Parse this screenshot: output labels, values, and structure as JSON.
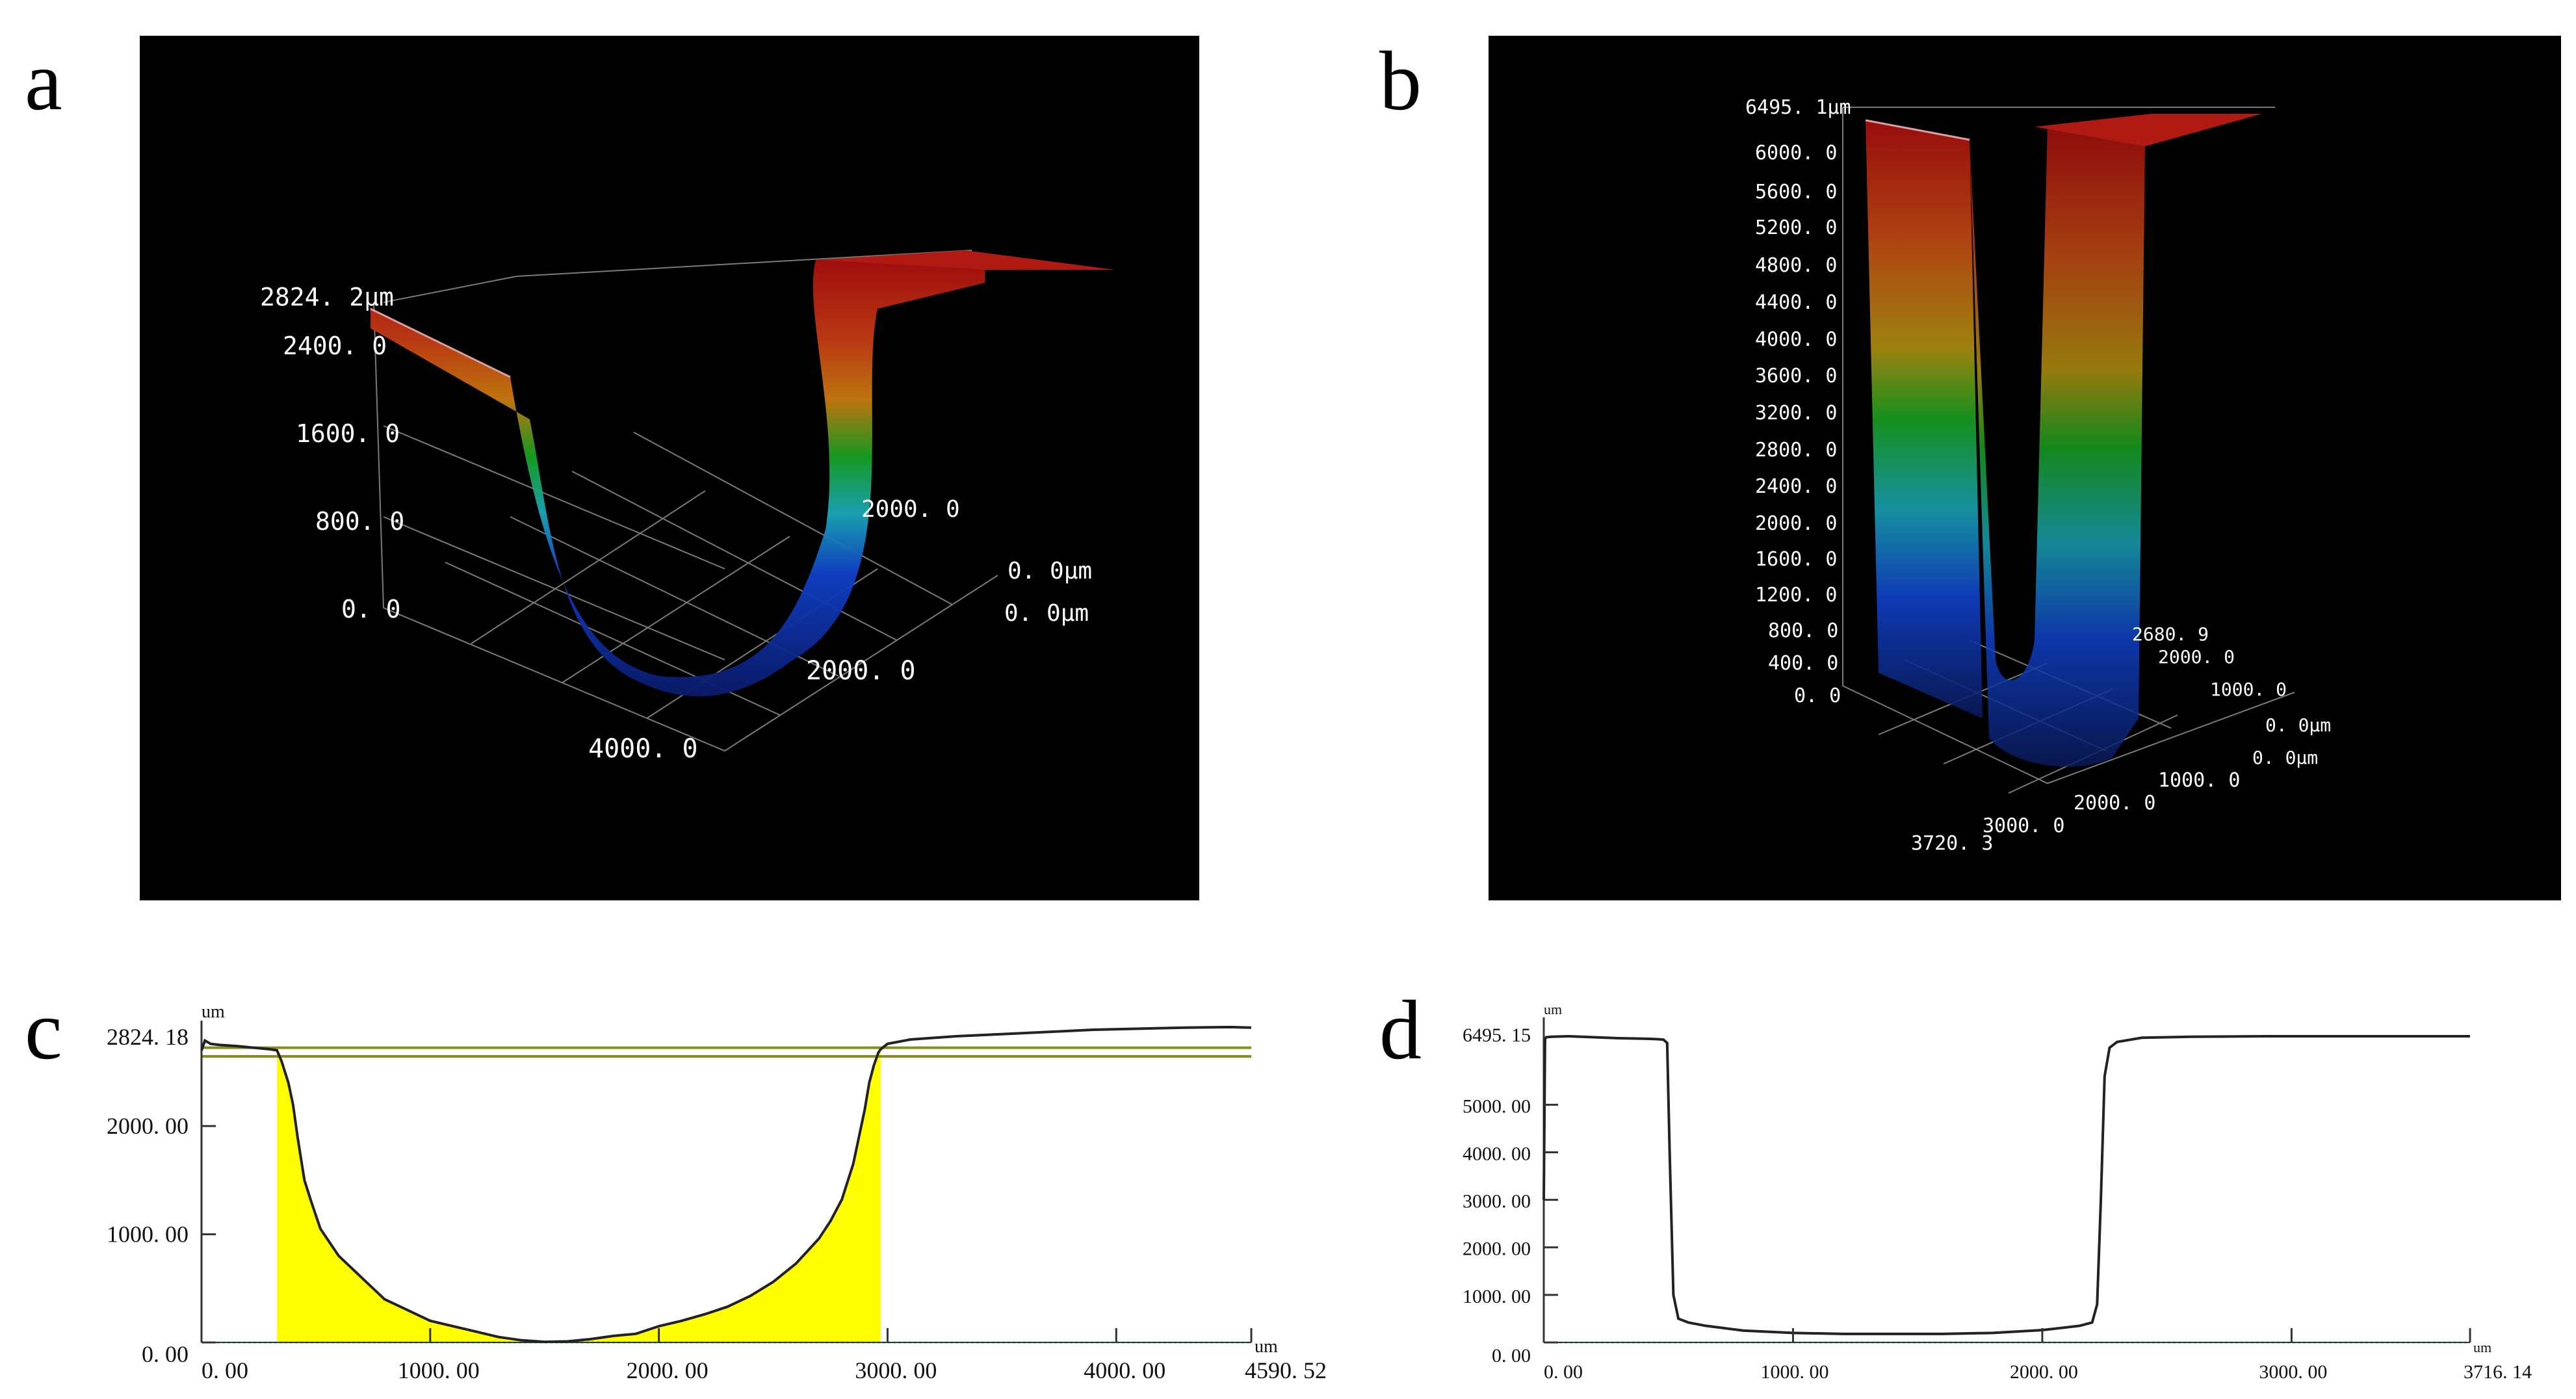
{
  "figure": {
    "panels": {
      "a": "a",
      "b": "b",
      "c": "c",
      "d": "d"
    }
  },
  "colors": {
    "background_3d": "#000000",
    "surface_high": "#b01010",
    "surface_mid": "#10a020",
    "surface_low": "#1030c0",
    "grid_3d": "#8a8a8a",
    "profile_line": "#222222",
    "fill_area": "#ffff00",
    "threshold_line": "#8b8b20",
    "baseline": "#2fd0e8"
  },
  "chart_data": [
    {
      "id": "a",
      "type": "surface3d",
      "title": "",
      "z_unit": "µm",
      "z_max_label": "2824. 2µm",
      "z_ticks": [
        "2400. 0",
        "1600. 0",
        "800. 0",
        "0. 0"
      ],
      "y_axis_ticks": [
        "2000. 0",
        "0. 0µm"
      ],
      "x_axis_ticks": [
        "0. 0µm",
        "2000. 0",
        "4000. 0"
      ]
    },
    {
      "id": "b",
      "type": "surface3d",
      "title": "",
      "z_unit": "µm",
      "z_max_label": "6495. 1µm",
      "z_ticks": [
        "6000. 0",
        "5600. 0",
        "5200. 0",
        "4800. 0",
        "4400. 0",
        "4000. 0",
        "3600. 0",
        "3200. 0",
        "2800. 0",
        "2400. 0",
        "2000. 0",
        "1600. 0",
        "1200. 0",
        "800. 0",
        "400. 0",
        "0. 0"
      ],
      "y_axis_ticks": [
        "2680. 9",
        "2000. 0",
        "1000. 0",
        "0. 0µm"
      ],
      "x_axis_ticks": [
        "0. 0µm",
        "1000. 0",
        "2000. 0",
        "3000. 0",
        "3720. 3"
      ]
    },
    {
      "id": "c",
      "type": "line",
      "unit": "um",
      "xlabel": "um",
      "ylabel": "um",
      "xlim": [
        0,
        4590.52
      ],
      "ylim": [
        0,
        2824.18
      ],
      "x_ticks": [
        0,
        1000,
        2000,
        3000,
        4000
      ],
      "x_tick_labels": [
        "0. 00",
        "1000. 00",
        "2000. 00",
        "3000. 00",
        "4000. 00"
      ],
      "x_max_label": "4590. 52",
      "y_tick_labels": [
        "0. 00",
        "1000. 00",
        "2000. 00"
      ],
      "y_ticks": [
        0,
        1000,
        2000
      ],
      "y_max_label": "2824. 18",
      "threshold_lines": [
        2724,
        2644
      ],
      "fill_range": [
        330,
        2970
      ],
      "series": [
        {
          "name": "profile",
          "x": [
            0,
            15,
            40,
            80,
            150,
            200,
            250,
            300,
            330,
            350,
            380,
            400,
            420,
            450,
            480,
            520,
            600,
            700,
            800,
            900,
            1000,
            1100,
            1200,
            1300,
            1400,
            1500,
            1600,
            1700,
            1800,
            1900,
            2000,
            2100,
            2200,
            2300,
            2400,
            2500,
            2600,
            2700,
            2750,
            2800,
            2850,
            2870,
            2900,
            2920,
            2940,
            2960,
            2970,
            3000,
            3100,
            3300,
            3500,
            3700,
            3900,
            4100,
            4300,
            4500,
            4590
          ],
          "y": [
            2700,
            2790,
            2760,
            2750,
            2740,
            2730,
            2720,
            2710,
            2700,
            2600,
            2400,
            2200,
            1900,
            1500,
            1300,
            1050,
            800,
            600,
            400,
            300,
            200,
            150,
            100,
            50,
            20,
            5,
            10,
            30,
            60,
            80,
            150,
            200,
            260,
            330,
            430,
            560,
            730,
            960,
            1120,
            1320,
            1650,
            1850,
            2150,
            2400,
            2560,
            2680,
            2710,
            2760,
            2800,
            2830,
            2850,
            2870,
            2890,
            2900,
            2910,
            2915,
            2910
          ]
        }
      ]
    },
    {
      "id": "d",
      "type": "line",
      "unit": "um",
      "xlabel": "um",
      "ylabel": "um",
      "xlim": [
        0,
        3716.14
      ],
      "ylim": [
        0,
        6495.15
      ],
      "x_ticks": [
        0,
        1000,
        2000,
        3000
      ],
      "x_tick_labels": [
        "0. 00",
        "1000. 00",
        "2000. 00",
        "3000. 00"
      ],
      "x_max_label": "3716. 14",
      "y_ticks": [
        0,
        1000,
        2000,
        3000,
        4000,
        5000
      ],
      "y_tick_labels": [
        "0. 00",
        "1000. 00",
        "2000. 00",
        "3000. 00",
        "4000. 00",
        "5000. 00"
      ],
      "y_max_label": "6495. 15",
      "series": [
        {
          "name": "profile",
          "x": [
            0,
            5,
            10,
            30,
            100,
            200,
            300,
            400,
            450,
            480,
            495,
            505,
            520,
            540,
            580,
            650,
            800,
            1000,
            1200,
            1400,
            1600,
            1800,
            2000,
            2150,
            2200,
            2220,
            2235,
            2250,
            2270,
            2300,
            2400,
            2600,
            2900,
            3200,
            3500,
            3716
          ],
          "y": [
            3000,
            6380,
            6420,
            6430,
            6440,
            6420,
            6400,
            6390,
            6380,
            6370,
            6300,
            4000,
            1000,
            500,
            420,
            350,
            250,
            200,
            180,
            180,
            180,
            200,
            260,
            350,
            420,
            800,
            3000,
            5600,
            6200,
            6320,
            6410,
            6430,
            6440,
            6440,
            6440,
            6440
          ]
        }
      ]
    }
  ]
}
